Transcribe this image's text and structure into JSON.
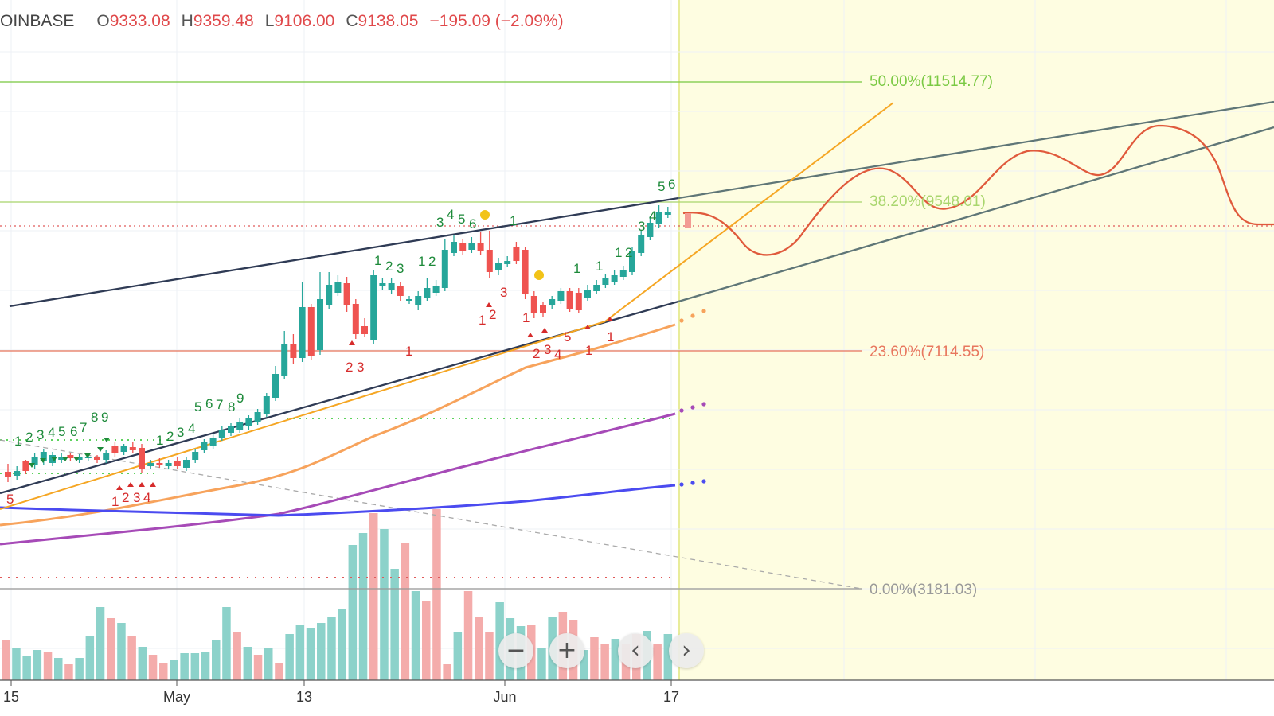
{
  "header": {
    "symbol": "OINBASE",
    "open_label": "O",
    "open": "9333.08",
    "high_label": "H",
    "high": "9359.48",
    "low_label": "L",
    "low": "9106.00",
    "close_label": "C",
    "close": "9138.05",
    "change": "−195.09 (−2.09%)"
  },
  "nav": {
    "zoom_out": "−",
    "zoom_in": "+",
    "back": "‹",
    "forward": "›"
  },
  "chart_data": {
    "type": "candlestick",
    "x_ticks": [
      "15",
      "May",
      "13",
      "Jun",
      "17"
    ],
    "fib_levels": [
      {
        "label": "50.00%(11514.77)",
        "color": "#7ac943"
      },
      {
        "label": "38.20%(9548.01)",
        "color": "#a9d66e"
      },
      {
        "label": "23.60%(7114.55)",
        "color": "#e8775e"
      },
      {
        "label": "0.00%(3181.03)",
        "color": "#999999"
      }
    ],
    "colors": {
      "up": "#26a69a",
      "down": "#ef5350",
      "ma_fast": "#f7a35c",
      "ma_mid": "#a64ab7",
      "ma_slow": "#4b4bf0",
      "trendline": "#2f3b55",
      "projection": "#e05a3c"
    }
  }
}
